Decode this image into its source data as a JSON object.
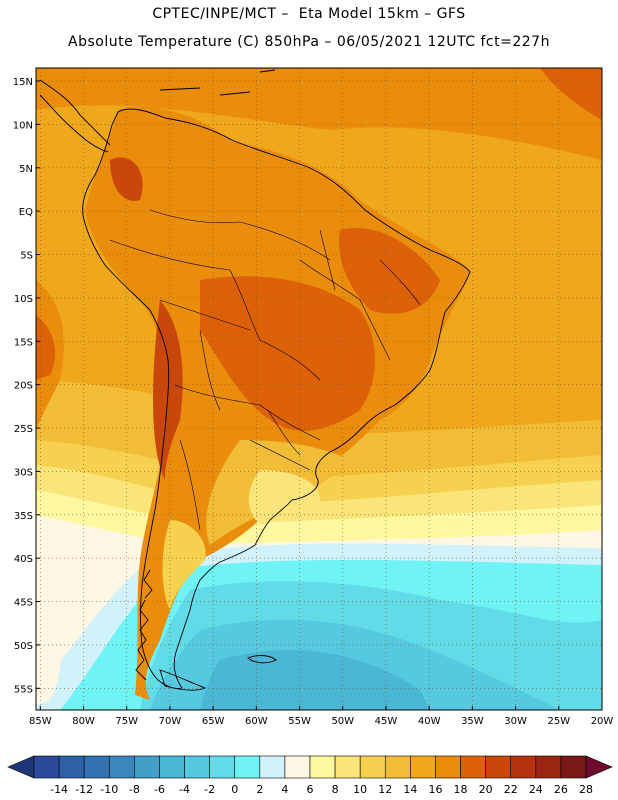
{
  "header": {
    "line1": "CPTEC/INPE/MCT –  Eta Model 15km – GFS",
    "line2": "Absolute Temperature (C) 850hPa – 06/05/2021 12UTC fct=227h"
  },
  "map": {
    "lat_labels": [
      "15N",
      "10N",
      "5N",
      "EQ",
      "5S",
      "10S",
      "15S",
      "20S",
      "25S",
      "30S",
      "35S",
      "40S",
      "45S",
      "50S",
      "55S"
    ],
    "lat_values": [
      15,
      10,
      5,
      0,
      -5,
      -10,
      -15,
      -20,
      -25,
      -30,
      -35,
      -40,
      -45,
      -50,
      -55
    ],
    "lon_labels": [
      "85W",
      "80W",
      "75W",
      "70W",
      "65W",
      "60W",
      "55W",
      "50W",
      "45W",
      "40W",
      "35W",
      "30W",
      "25W",
      "20W"
    ],
    "lon_values": [
      -85,
      -80,
      -75,
      -70,
      -65,
      -60,
      -55,
      -50,
      -45,
      -40,
      -35,
      -30,
      -25,
      -20
    ],
    "extent": {
      "lon_min": -85.5,
      "lon_max": -20,
      "lat_min": -57.5,
      "lat_max": 16.5
    }
  },
  "colorbar": {
    "labels": [
      "-14",
      "-12",
      "-10",
      "-8",
      "-6",
      "-4",
      "-2",
      "0",
      "2",
      "4",
      "6",
      "8",
      "10",
      "12",
      "14",
      "16",
      "18",
      "20",
      "22",
      "24",
      "26",
      "28"
    ],
    "colors": [
      "#2b4a9a",
      "#2f5fa5",
      "#3372b0",
      "#3a86bd",
      "#42a0c8",
      "#4ab7d4",
      "#55c9e0",
      "#62dbe9",
      "#6ff3f5",
      "#d2f2fb",
      "#fff7e4",
      "#fff8a0",
      "#fbe47a",
      "#f6d150",
      "#f1bd36",
      "#efa81b",
      "#ea8c0c",
      "#dc6108",
      "#c9470a",
      "#b5340f",
      "#9b2512",
      "#7a1a17"
    ],
    "low_arrow": "#1f3579",
    "high_arrow": "#6f0a2e"
  }
}
